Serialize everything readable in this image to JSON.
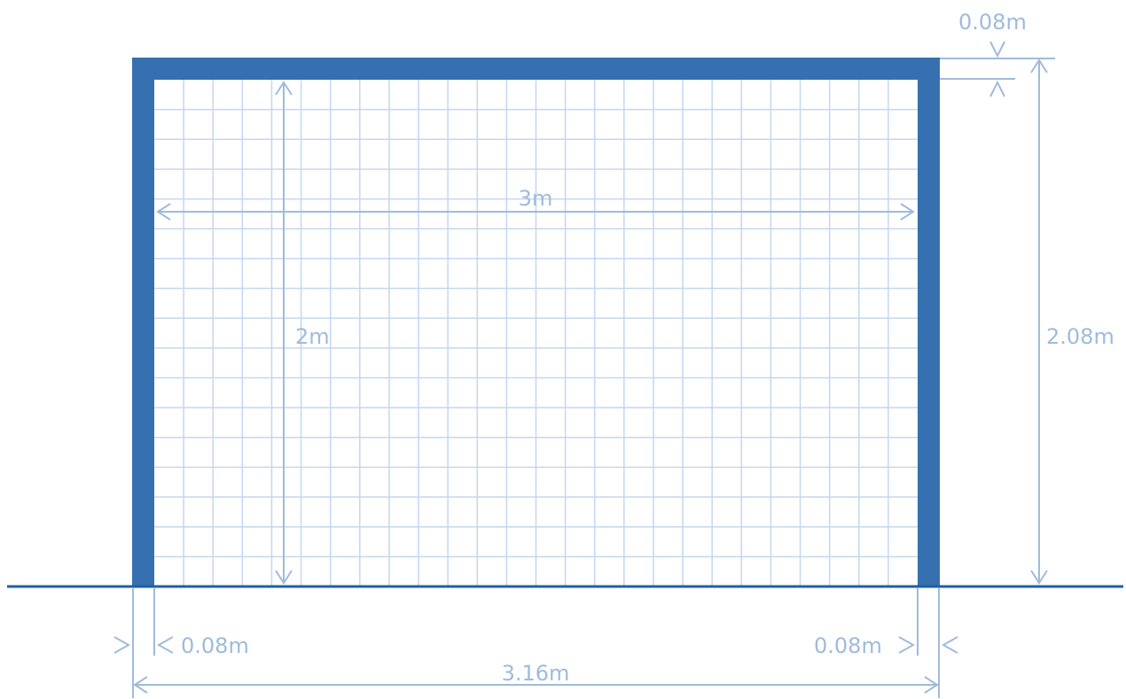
{
  "labels": {
    "inner_width": "3m",
    "inner_height": "2m",
    "outer_height": "2.08m",
    "crossbar_thickness": "0.08m",
    "left_post_thickness": "0.08m",
    "right_post_thickness": "0.08m",
    "outer_width": "3.16m"
  },
  "colors": {
    "frame": "#3670b0",
    "ground": "#1f5ea8",
    "net": "#c5d7ee",
    "dimension": "#9fbbdc",
    "background": "#ffffff"
  }
}
